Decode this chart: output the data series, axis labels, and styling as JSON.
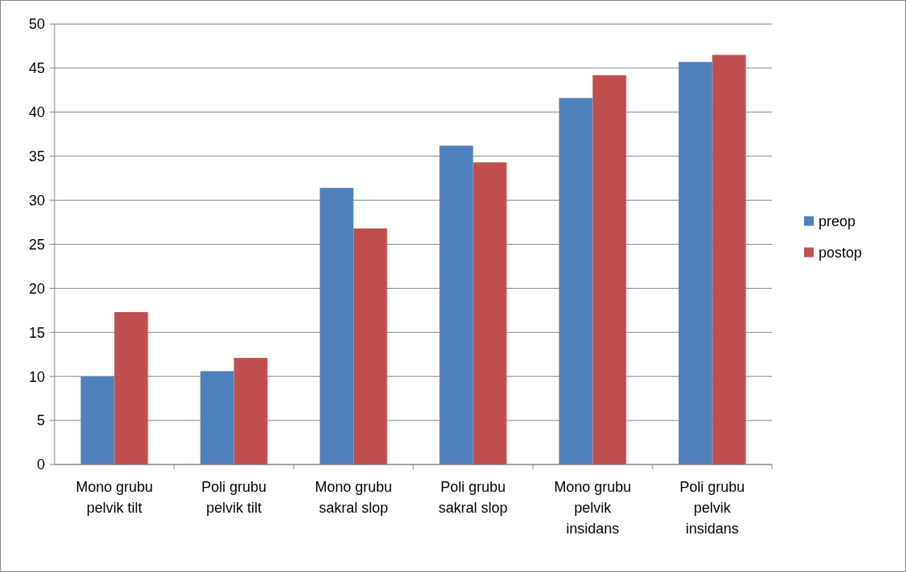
{
  "chart_data": {
    "type": "bar",
    "categories": [
      "Mono grubu pelvik tilt",
      "Poli grubu pelvik tilt",
      "Mono grubu sakral slop",
      "Poli grubu sakral slop",
      "Mono grubu pelvik insidans",
      "Poli grubu pelvik insidans"
    ],
    "series": [
      {
        "name": "preop",
        "color": "#4f81bd",
        "values": [
          10.0,
          10.6,
          31.4,
          36.2,
          41.6,
          45.7
        ]
      },
      {
        "name": "postop",
        "color": "#c0504d",
        "values": [
          17.3,
          12.1,
          26.8,
          34.3,
          44.2,
          46.5
        ]
      }
    ],
    "ylim": [
      0,
      50
    ],
    "yticks": [
      0,
      5,
      10,
      15,
      20,
      25,
      30,
      35,
      40,
      45,
      50
    ],
    "grid": "y",
    "legend": "right"
  }
}
